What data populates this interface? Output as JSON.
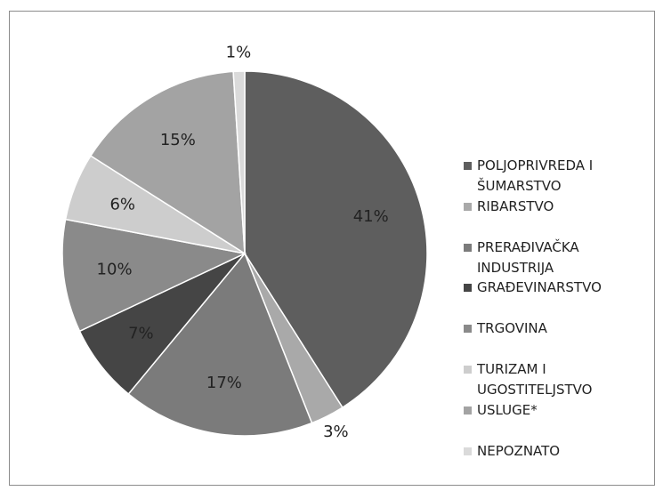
{
  "chart_data": {
    "type": "pie",
    "categories": [
      "POLJOPRIVREDA I ŠUMARSTVO",
      "RIBARSTVO",
      "PRERAĐIVAČKA INDUSTRIJA",
      "GRAĐEVINARSTVO",
      "TRGOVINA",
      "TURIZAM I UGOSTITELJSTVO",
      "USLUGE*",
      "NEPOZNATO"
    ],
    "values": [
      41,
      3,
      17,
      7,
      10,
      6,
      15,
      1
    ],
    "value_labels": [
      "41%",
      "3%",
      "17%",
      "7%",
      "10%",
      "6%",
      "15%",
      "1%"
    ],
    "colors": [
      "#5e5e5e",
      "#a9a9a9",
      "#7b7b7b",
      "#454545",
      "#8a8a8a",
      "#cdcdcd",
      "#a3a3a3",
      "#dadada"
    ],
    "legend": "right"
  }
}
